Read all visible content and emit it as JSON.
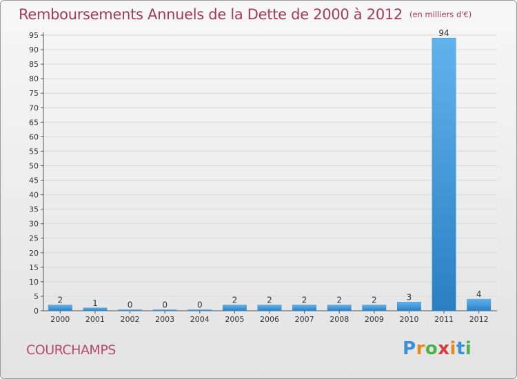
{
  "title": "Remboursements Annuels de la Dette de 2000 à 2012",
  "subtitle": "(en milliers d'€)",
  "commune": "COURCHAMPS",
  "brand": {
    "letters": [
      "P",
      "r",
      "o",
      "x",
      "i",
      "t",
      "i"
    ],
    "colors": [
      "#3a8fd8",
      "#e58a1f",
      "#4bb34b",
      "#d63a3a",
      "#e58a1f",
      "#3a8fd8",
      "#4bb34b"
    ]
  },
  "colors": {
    "title": "#a23a5a",
    "bar_light": "#62b3ec",
    "bar_dark": "#2a7fc3",
    "grid": "#d8d8d8"
  },
  "chart_data": {
    "type": "bar",
    "categories": [
      "2000",
      "2001",
      "2002",
      "2003",
      "2004",
      "2005",
      "2006",
      "2007",
      "2008",
      "2009",
      "2010",
      "2011",
      "2012"
    ],
    "values": [
      2,
      1,
      0,
      0,
      0,
      2,
      2,
      2,
      2,
      2,
      3,
      94,
      4
    ],
    "title": "Remboursements Annuels de la Dette de 2000 à 2012",
    "xlabel": "",
    "ylabel": "",
    "ylim": [
      0,
      95
    ],
    "yticks": [
      0,
      5,
      10,
      15,
      20,
      25,
      30,
      35,
      40,
      45,
      50,
      55,
      60,
      65,
      70,
      75,
      80,
      85,
      90,
      95
    ],
    "grid": true,
    "data_labels": true
  }
}
